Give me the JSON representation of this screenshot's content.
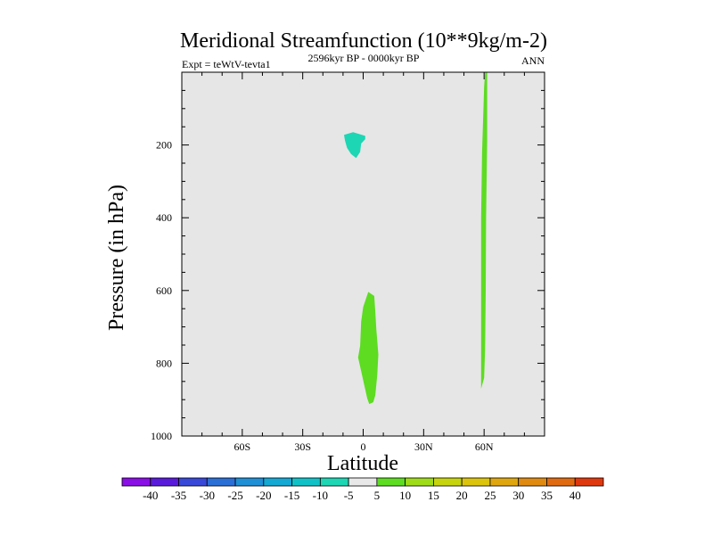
{
  "chart_data": {
    "type": "contour",
    "title": "Meridional Streamfunction (10**9kg/m-2)",
    "subtitle": "2596kyr BP - 0000kyr BP",
    "left_label": "Expt = teWtV-tevta1",
    "right_label": "ANN",
    "xlabel": "Latitude",
    "ylabel": "Pressure (in hPa)",
    "xlim": [
      -90,
      90
    ],
    "ylim": [
      1000,
      0
    ],
    "x_ticks": [
      {
        "value": -60,
        "label": "60S"
      },
      {
        "value": -30,
        "label": "30S"
      },
      {
        "value": 0,
        "label": "0"
      },
      {
        "value": 30,
        "label": "30N"
      },
      {
        "value": 60,
        "label": "60N"
      }
    ],
    "y_ticks": [
      {
        "value": 200,
        "label": "200"
      },
      {
        "value": 400,
        "label": "400"
      },
      {
        "value": 600,
        "label": "600"
      },
      {
        "value": 800,
        "label": "800"
      },
      {
        "value": 1000,
        "label": "1000"
      }
    ],
    "background_color": "#e6e6e6",
    "regions": [
      {
        "name": "negative-cell-upper",
        "level": "-10 to -5",
        "color": "#1dd6b4",
        "points": [
          [
            -9.5,
            172
          ],
          [
            -5,
            165
          ],
          [
            1,
            175
          ],
          [
            1,
            184
          ],
          [
            -1,
            196
          ],
          [
            -1.5,
            219
          ],
          [
            -3.5,
            236
          ],
          [
            -6,
            225
          ],
          [
            -8,
            208
          ],
          [
            -9,
            188
          ]
        ]
      },
      {
        "name": "positive-cell-lower",
        "level": "5 to 10",
        "color": "#5ddc22",
        "points": [
          [
            2.5,
            604
          ],
          [
            5.5,
            615
          ],
          [
            6,
            658
          ],
          [
            6.5,
            705
          ],
          [
            7.5,
            776
          ],
          [
            7,
            832
          ],
          [
            6,
            888
          ],
          [
            5,
            907
          ],
          [
            3,
            912
          ],
          [
            2,
            896
          ],
          [
            -2.5,
            784
          ],
          [
            -1.5,
            752
          ],
          [
            -1,
            686
          ],
          [
            0,
            645
          ]
        ]
      },
      {
        "name": "positive-cell-60n",
        "level": "5 to 10",
        "color": "#5ddc22",
        "points": [
          [
            61.5,
            0
          ],
          [
            61.5,
            190
          ],
          [
            61,
            400
          ],
          [
            60.8,
            600
          ],
          [
            60.5,
            760
          ],
          [
            60,
            840
          ],
          [
            58.5,
            870
          ],
          [
            58.5,
            620
          ],
          [
            58.5,
            400
          ],
          [
            59,
            220
          ],
          [
            60,
            40
          ],
          [
            60.5,
            0
          ]
        ]
      }
    ],
    "colorbar": {
      "labels": [
        "-40",
        "-35",
        "-30",
        "-25",
        "-20",
        "-15",
        "-10",
        "-5",
        "5",
        "10",
        "15",
        "20",
        "25",
        "30",
        "35",
        "40"
      ],
      "colors": [
        "#8a0ee6",
        "#5a1adc",
        "#3848d8",
        "#2a6fd6",
        "#1f8fd6",
        "#14a8d4",
        "#10c2c8",
        "#1dd6b4",
        "#e8e8e8",
        "#5ddc22",
        "#9edc18",
        "#c6d40e",
        "#dcc40c",
        "#e0a60e",
        "#e08a10",
        "#e06a10",
        "#e0380e"
      ]
    }
  }
}
